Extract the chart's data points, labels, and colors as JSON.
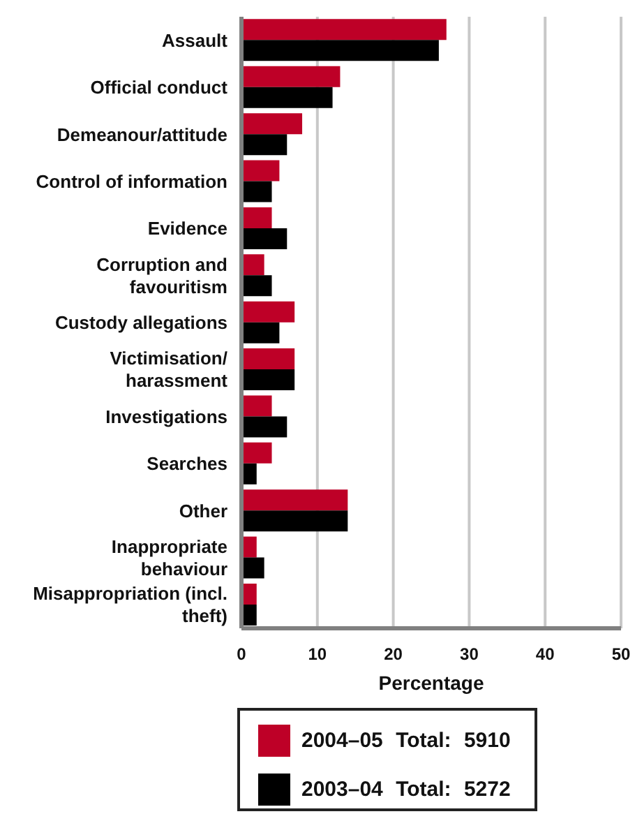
{
  "chart_data": {
    "type": "bar",
    "orientation": "horizontal",
    "categories": [
      "Assault",
      "Official conduct",
      "Demeanour/attitude",
      "Control of information",
      "Evidence",
      "Corruption and favouritism",
      "Custody allegations",
      "Victimisation/harassment",
      "Investigations",
      "Searches",
      "Other",
      "Inappropriate behaviour",
      "Misappropriation (incl. theft)"
    ],
    "series": [
      {
        "name": "2004–05 Total: 5910",
        "color": "#be0027",
        "values": [
          27,
          13,
          8,
          5,
          4,
          3,
          7,
          7,
          4,
          4,
          14,
          2,
          2
        ]
      },
      {
        "name": "2003–04 Total: 5272",
        "color": "#000000",
        "values": [
          26,
          12,
          6,
          4,
          6,
          4,
          5,
          7,
          6,
          2,
          14,
          3,
          2
        ]
      }
    ],
    "xlabel": "Percentage",
    "xlim": [
      0,
      50
    ],
    "xticks": [
      0,
      10,
      20,
      30,
      40,
      50
    ],
    "grid": "x",
    "legend": "bottom"
  }
}
